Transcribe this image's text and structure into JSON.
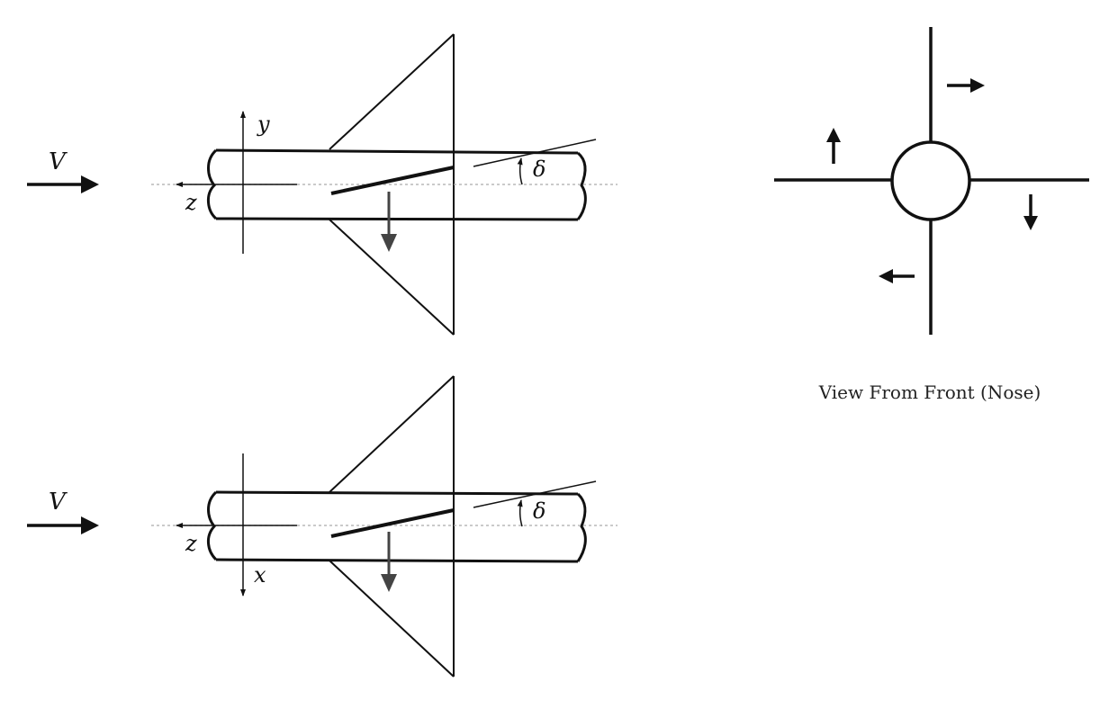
{
  "top_view": {
    "velocity_label": "V",
    "axis_vertical_label": "y",
    "axis_horizontal_label": "z",
    "deflection_label": "δ"
  },
  "bottom_view": {
    "velocity_label": "V",
    "axis_vertical_label": "x",
    "axis_horizontal_label": "z",
    "deflection_label": "δ"
  },
  "front_view": {
    "caption": "View From Front (Nose)"
  }
}
